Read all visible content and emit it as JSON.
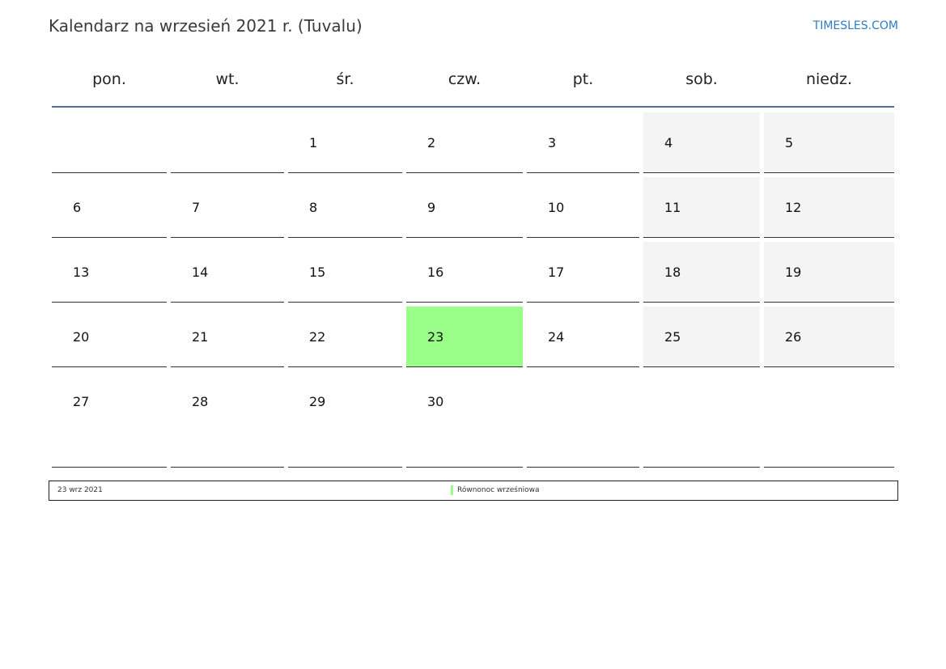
{
  "title": "Kalendarz na wrzesień 2021 r. (Tuvalu)",
  "brand": "TIMESLES.COM",
  "weekdays": [
    "pon.",
    "wt.",
    "śr.",
    "czw.",
    "pt.",
    "sob.",
    "niedz."
  ],
  "weeks": [
    [
      "",
      "",
      "1",
      "2",
      "3",
      "4",
      "5"
    ],
    [
      "6",
      "7",
      "8",
      "9",
      "10",
      "11",
      "12"
    ],
    [
      "13",
      "14",
      "15",
      "16",
      "17",
      "18",
      "19"
    ],
    [
      "20",
      "21",
      "22",
      "23",
      "24",
      "25",
      "26"
    ],
    [
      "27",
      "28",
      "29",
      "30",
      "",
      "",
      ""
    ]
  ],
  "highlight_day": "23",
  "colors": {
    "highlight": "#99ff88",
    "weekend": "#f4f4f4",
    "rule": "#4a6fa0",
    "brand": "#2f7bc4"
  },
  "legend": [
    {
      "date": "23 wrz 2021",
      "name": "Równonoc wrześniowa"
    }
  ]
}
